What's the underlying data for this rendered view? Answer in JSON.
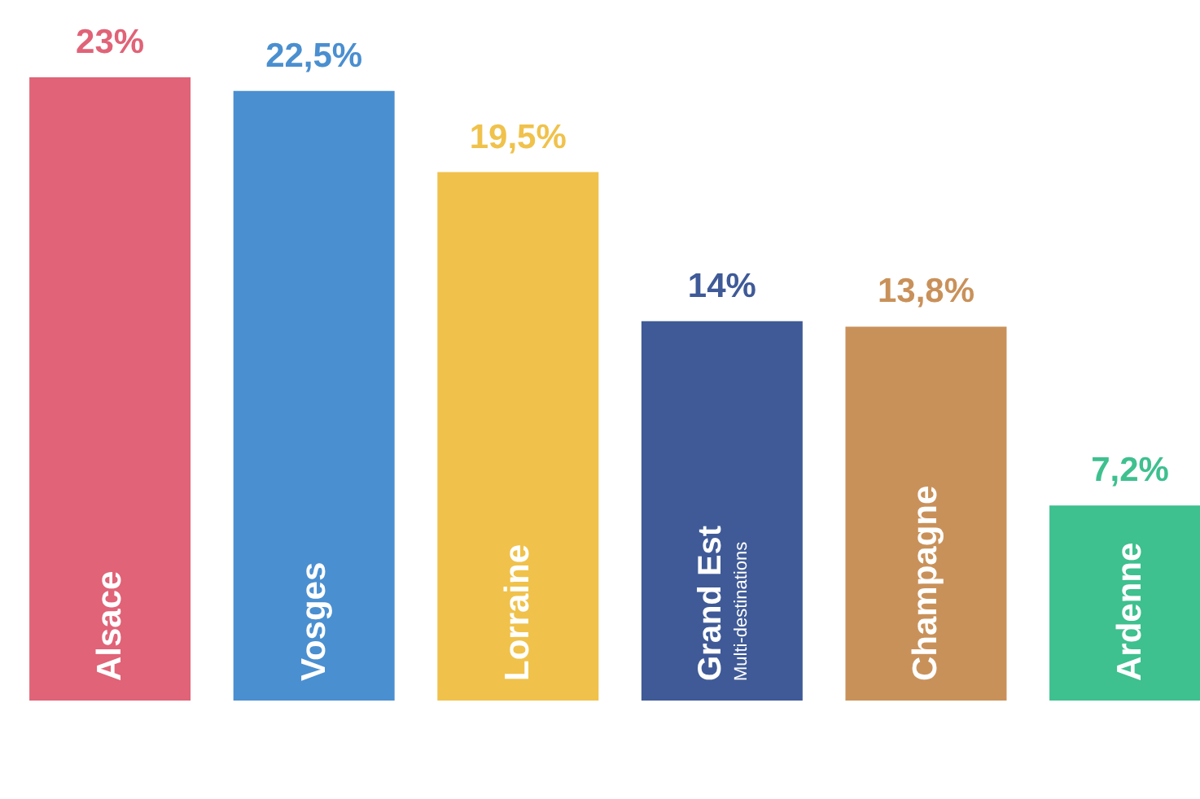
{
  "chart_data": {
    "type": "bar",
    "categories": [
      "Alsace",
      "Vosges",
      "Lorraine",
      "Grand Est\nMulti-destinations",
      "Champagne",
      "Ardenne"
    ],
    "values": [
      23,
      22.5,
      19.5,
      14,
      13.8,
      7.2
    ],
    "value_labels": [
      "23%",
      "22,5%",
      "19,5%",
      "14%",
      "13,8%",
      "7,2%"
    ],
    "colors": [
      "#e06377",
      "#4a8fd0",
      "#f0c24b",
      "#3f5a97",
      "#c9915a",
      "#3ec08f"
    ]
  }
}
